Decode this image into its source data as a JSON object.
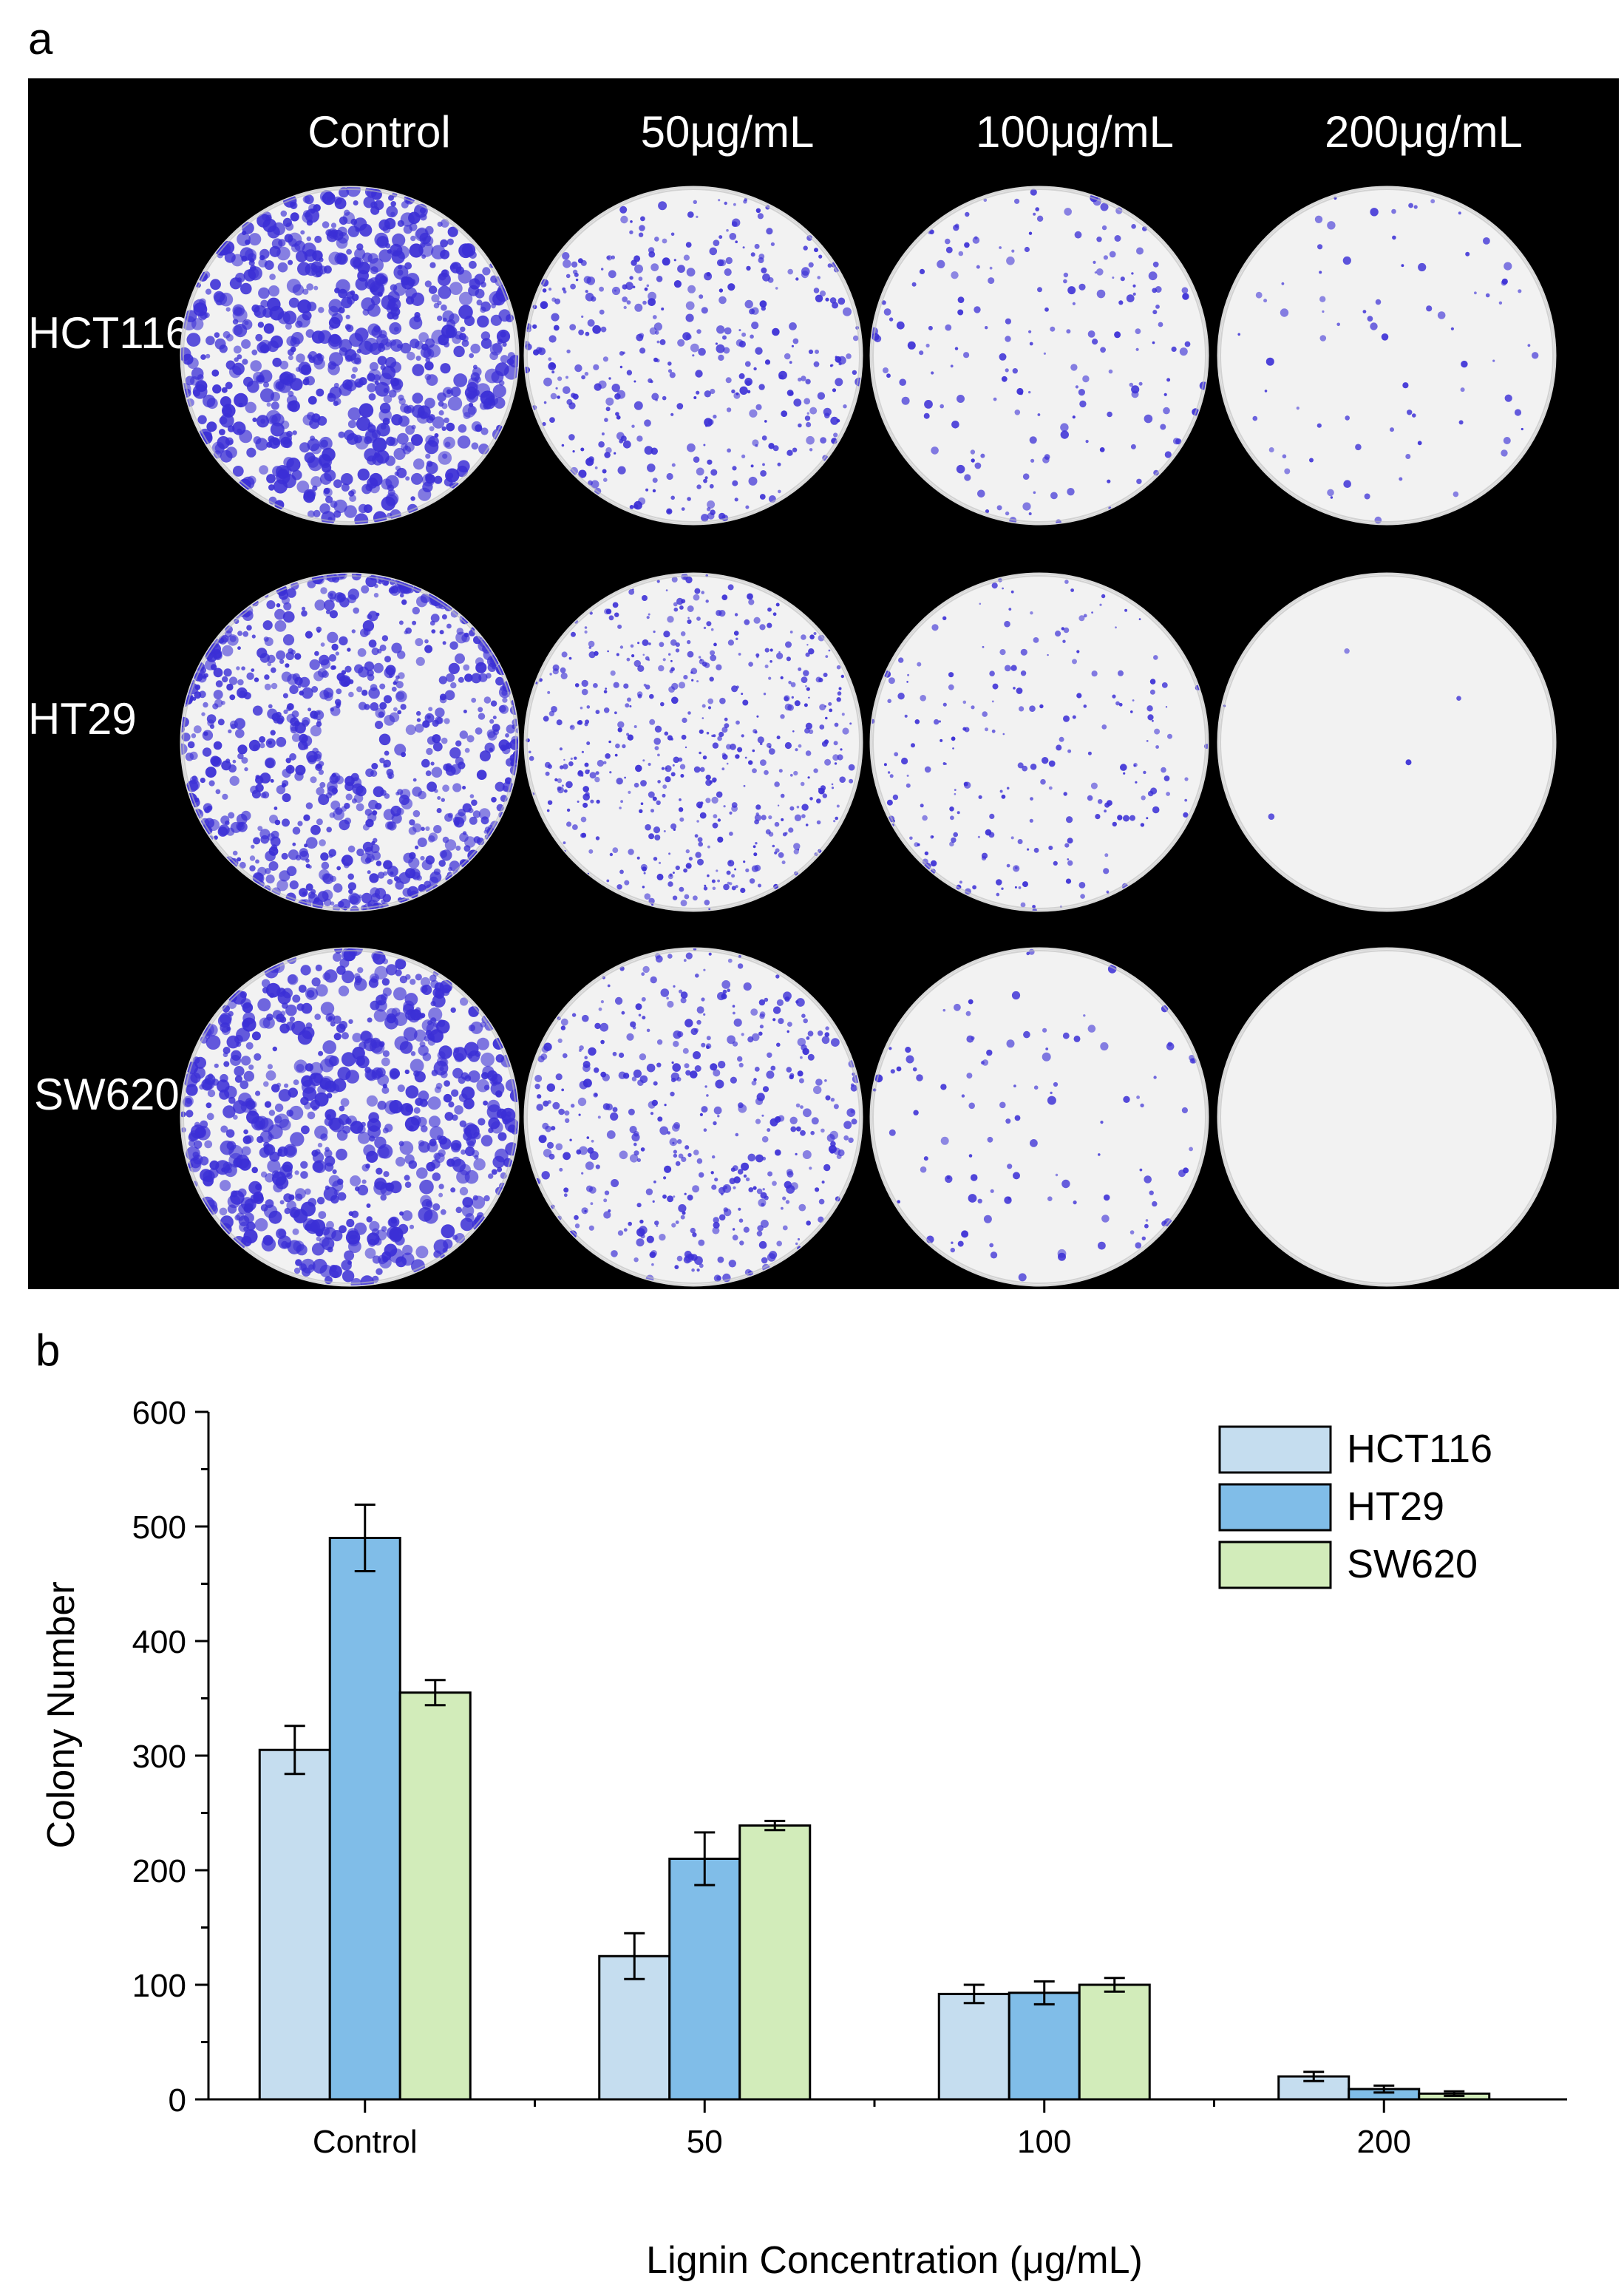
{
  "panel_a": {
    "label": "a",
    "column_labels": [
      "Control",
      "50μg/mL",
      "100μg/mL",
      "200μg/mL"
    ],
    "row_labels": [
      "HCT116",
      "HT29",
      "SW620"
    ],
    "colors": {
      "background": "#000000",
      "plate": "#f2f2f2",
      "stain": "#3b2fd6"
    }
  },
  "panel_b": {
    "label": "b",
    "chart_data": {
      "type": "bar",
      "categories": [
        "Control",
        "50",
        "100",
        "200"
      ],
      "series": [
        {
          "name": "HCT116",
          "values": [
            305,
            125,
            92,
            20
          ],
          "errors": [
            21,
            20,
            8,
            4
          ],
          "color": "#c5ddef"
        },
        {
          "name": "HT29",
          "values": [
            490,
            210,
            93,
            9
          ],
          "errors": [
            29,
            23,
            10,
            3
          ],
          "color": "#80bde8"
        },
        {
          "name": "SW620",
          "values": [
            355,
            239,
            100,
            5
          ],
          "errors": [
            11,
            4,
            6,
            2
          ],
          "color": "#d2ecba"
        }
      ],
      "xlabel": "Lignin Concentration (μg/mL)",
      "ylabel": "Colony Number",
      "ylim": [
        0,
        600
      ],
      "yticks": [
        "0",
        "100",
        "200",
        "300",
        "400",
        "500",
        "600"
      ],
      "grid": false,
      "legend": "top-right"
    }
  }
}
